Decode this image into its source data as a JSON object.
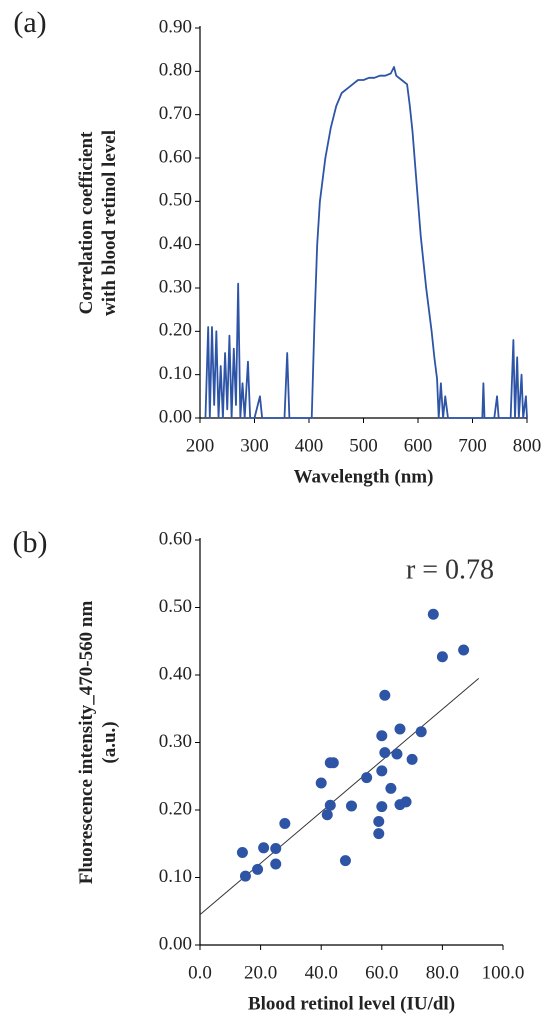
{
  "chart_data": [
    {
      "type": "line",
      "panel_label": "(a)",
      "xlabel": "Wavelength (nm)",
      "ylabel": [
        "Correlation coefficient",
        "with blood retinol level"
      ],
      "xlim": [
        200,
        800
      ],
      "xticks": [
        200,
        300,
        400,
        500,
        600,
        700,
        800
      ],
      "ylim": [
        0,
        0.9
      ],
      "yticks": [
        {
          "value": 0,
          "label": "0.00"
        },
        {
          "value": 0.1,
          "label": "0.10"
        },
        {
          "value": 0.2,
          "label": "0.20"
        },
        {
          "value": 0.3,
          "label": "0.30"
        },
        {
          "value": 0.4,
          "label": "0.40"
        },
        {
          "value": 0.5,
          "label": "0.50"
        },
        {
          "value": 0.6,
          "label": "0.60"
        },
        {
          "value": 0.7,
          "label": "0.70"
        },
        {
          "value": 0.8,
          "label": "0.80"
        },
        {
          "value": 0.9,
          "label": "0.90"
        }
      ],
      "x": [
        210,
        215,
        218,
        222,
        226,
        230,
        234,
        238,
        242,
        246,
        250,
        254,
        258,
        262,
        266,
        270,
        274,
        278,
        282,
        288,
        292,
        300,
        310,
        314,
        340,
        355,
        360,
        364,
        400,
        405,
        410,
        415,
        420,
        430,
        440,
        450,
        460,
        470,
        480,
        490,
        500,
        510,
        520,
        530,
        540,
        550,
        556,
        560,
        570,
        580,
        585,
        590,
        595,
        600,
        605,
        610,
        615,
        620,
        625,
        630,
        635,
        638,
        642,
        646,
        650,
        655,
        700,
        718,
        720,
        722,
        740,
        745,
        748,
        770,
        775,
        778,
        782,
        785,
        790,
        793,
        798,
        800
      ],
      "series": [
        {
          "color": "#2e54a6",
          "values": [
            0,
            0.21,
            0,
            0.21,
            0.03,
            0.2,
            0,
            0.12,
            0,
            0.15,
            0.02,
            0.19,
            0,
            0.16,
            0.03,
            0.31,
            0,
            0.08,
            0,
            0.13,
            0,
            0,
            0.05,
            0,
            0,
            0,
            0.15,
            0,
            0,
            0,
            0.22,
            0.4,
            0.5,
            0.6,
            0.67,
            0.72,
            0.75,
            0.76,
            0.77,
            0.78,
            0.78,
            0.785,
            0.785,
            0.79,
            0.79,
            0.795,
            0.81,
            0.79,
            0.78,
            0.77,
            0.72,
            0.66,
            0.58,
            0.5,
            0.42,
            0.36,
            0.3,
            0.25,
            0.2,
            0.14,
            0.09,
            0,
            0.08,
            0,
            0.05,
            0,
            0,
            0,
            0.08,
            0,
            0,
            0.05,
            0,
            0,
            0.18,
            0,
            0.14,
            0,
            0.1,
            0,
            0.05,
            0
          ]
        }
      ]
    },
    {
      "type": "scatter",
      "panel_label": "(b)",
      "xlabel": "Blood retinol level (IU/dl)",
      "ylabel": [
        "Fluorescence intensity_470-560 nm",
        "(a.u.)"
      ],
      "annotation": "r = 0.78",
      "xlim": [
        0,
        100
      ],
      "xticks": [
        {
          "value": 0,
          "label": "0.0"
        },
        {
          "value": 20,
          "label": "20.0"
        },
        {
          "value": 40,
          "label": "40.0"
        },
        {
          "value": 60,
          "label": "60.0"
        },
        {
          "value": 80,
          "label": "80.0"
        },
        {
          "value": 100,
          "label": "100.0"
        }
      ],
      "ylim": [
        0,
        0.6
      ],
      "yticks": [
        {
          "value": 0,
          "label": "0.00"
        },
        {
          "value": 0.1,
          "label": "0.10"
        },
        {
          "value": 0.2,
          "label": "0.20"
        },
        {
          "value": 0.3,
          "label": "0.30"
        },
        {
          "value": 0.4,
          "label": "0.40"
        },
        {
          "value": 0.5,
          "label": "0.50"
        },
        {
          "value": 0.6,
          "label": "0.60"
        }
      ],
      "x": [
        14,
        15,
        19,
        21,
        25,
        25,
        28,
        40,
        42,
        43,
        43,
        44,
        48,
        50,
        55,
        59,
        59,
        60,
        60,
        60,
        61,
        61,
        63,
        65,
        66,
        66,
        68,
        70,
        73,
        77,
        80,
        87
      ],
      "series": [
        {
          "color": "#2e54a6",
          "values": [
            0.137,
            0.102,
            0.112,
            0.144,
            0.143,
            0.12,
            0.18,
            0.24,
            0.193,
            0.27,
            0.207,
            0.27,
            0.125,
            0.206,
            0.248,
            0.165,
            0.183,
            0.205,
            0.258,
            0.31,
            0.285,
            0.37,
            0.232,
            0.283,
            0.32,
            0.208,
            0.212,
            0.275,
            0.316,
            0.49,
            0.427,
            0.437
          ]
        }
      ],
      "trendline": {
        "color": "#333333",
        "x": [
          0,
          92
        ],
        "values": [
          0.045,
          0.395
        ]
      }
    }
  ]
}
